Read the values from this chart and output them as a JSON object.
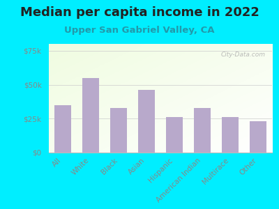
{
  "title": "Median per capita income in 2022",
  "subtitle": "Upper San Gabriel Valley, CA",
  "categories": [
    "All",
    "White",
    "Black",
    "Asian",
    "Hispanic",
    "American Indian",
    "Multirace",
    "Other"
  ],
  "values": [
    35000,
    55000,
    33000,
    46000,
    26000,
    33000,
    26000,
    23000
  ],
  "bar_color": "#b8a9cb",
  "background_outer": "#00eeff",
  "title_color": "#222222",
  "subtitle_color": "#2299aa",
  "ytick_color": "#888888",
  "xtick_color": "#888888",
  "ylim": [
    0,
    80000
  ],
  "yticks": [
    0,
    25000,
    50000,
    75000
  ],
  "ytick_labels": [
    "$0",
    "$25k",
    "$50k",
    "$75k"
  ],
  "watermark": "City-Data.com",
  "title_fontsize": 13,
  "subtitle_fontsize": 9.5,
  "tick_fontsize": 7.5
}
